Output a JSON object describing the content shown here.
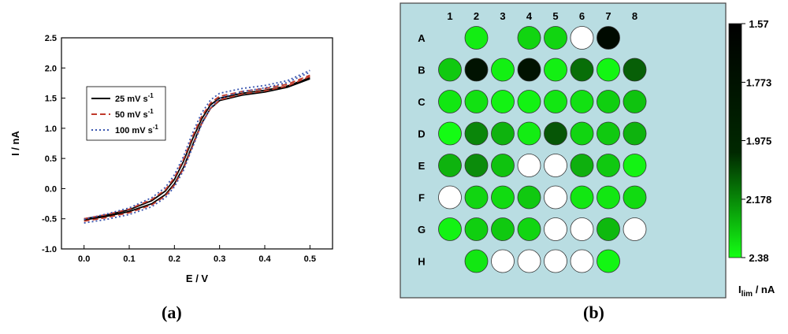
{
  "panel_a_caption": "(a)",
  "panel_b_caption": "(b)",
  "chart_data": [
    {
      "type": "line",
      "xlabel": "E / V",
      "ylabel": "I / nA",
      "xlim": [
        -0.05,
        0.55
      ],
      "ylim": [
        -1.0,
        2.5
      ],
      "xticks": [
        "0.0",
        "0.1",
        "0.2",
        "0.3",
        "0.4",
        "0.5"
      ],
      "xtick_values": [
        0.0,
        0.1,
        0.2,
        0.3,
        0.4,
        0.5
      ],
      "yticks": [
        "-1.0",
        "-0.5",
        "0.0",
        "0.5",
        "1.0",
        "1.5",
        "2.0",
        "2.5"
      ],
      "ytick_values": [
        -1.0,
        -0.5,
        0.0,
        0.5,
        1.0,
        1.5,
        2.0,
        2.5
      ],
      "legend_position": "upper-left",
      "x": [
        0.0,
        0.05,
        0.1,
        0.15,
        0.18,
        0.2,
        0.22,
        0.24,
        0.26,
        0.28,
        0.3,
        0.35,
        0.4,
        0.45,
        0.5
      ],
      "series": [
        {
          "name": "25 mV s",
          "superscript": "-1",
          "style": "solid",
          "color": "#000000",
          "forward": [
            -0.52,
            -0.46,
            -0.38,
            -0.25,
            -0.1,
            0.08,
            0.35,
            0.72,
            1.08,
            1.33,
            1.46,
            1.55,
            1.6,
            1.68,
            1.82
          ],
          "reverse": [
            -0.5,
            -0.44,
            -0.35,
            -0.2,
            -0.04,
            0.15,
            0.45,
            0.82,
            1.15,
            1.39,
            1.5,
            1.58,
            1.63,
            1.7,
            1.84
          ]
        },
        {
          "name": "50 mV s",
          "superscript": "-1",
          "style": "dashed",
          "color": "#c0392b",
          "forward": [
            -0.54,
            -0.48,
            -0.4,
            -0.27,
            -0.12,
            0.06,
            0.33,
            0.7,
            1.07,
            1.33,
            1.47,
            1.57,
            1.62,
            1.7,
            1.86
          ],
          "reverse": [
            -0.5,
            -0.43,
            -0.34,
            -0.18,
            -0.02,
            0.18,
            0.48,
            0.86,
            1.19,
            1.42,
            1.53,
            1.61,
            1.66,
            1.73,
            1.88
          ]
        },
        {
          "name": "100 mV s",
          "superscript": "-1",
          "style": "dotted",
          "color": "#3a56b0",
          "forward": [
            -0.57,
            -0.51,
            -0.43,
            -0.3,
            -0.15,
            0.03,
            0.3,
            0.68,
            1.06,
            1.34,
            1.5,
            1.61,
            1.67,
            1.76,
            1.93
          ],
          "reverse": [
            -0.51,
            -0.42,
            -0.32,
            -0.15,
            0.02,
            0.23,
            0.53,
            0.92,
            1.25,
            1.47,
            1.58,
            1.66,
            1.71,
            1.79,
            1.96
          ]
        }
      ]
    },
    {
      "type": "heatmap",
      "columns": [
        "1",
        "2",
        "3",
        "4",
        "5",
        "6",
        "7",
        "8"
      ],
      "rows": [
        "A",
        "B",
        "C",
        "D",
        "E",
        "F",
        "G",
        "H"
      ],
      "empty_value": "white",
      "colorbar_ticks": [
        "1.57",
        "1.773",
        "1.975",
        "2.178",
        "2.38"
      ],
      "colorbar_values": [
        1.57,
        1.773,
        1.975,
        2.178,
        2.38
      ],
      "colorbar_label": "I",
      "colorbar_label_sub": "lim",
      "colorbar_label_suffix": " / nA",
      "range": [
        1.57,
        2.38
      ],
      "background_color": "#b9dde2",
      "cells": [
        [
          null,
          2.32,
          null,
          2.24,
          2.24,
          "white",
          1.57,
          null
        ],
        [
          2.2,
          1.6,
          2.33,
          1.6,
          2.33,
          1.9,
          2.35,
          1.85
        ],
        [
          2.3,
          2.28,
          2.34,
          2.34,
          2.3,
          2.28,
          2.22,
          2.18
        ],
        [
          2.37,
          1.98,
          2.13,
          2.32,
          1.82,
          2.24,
          2.2,
          2.13
        ],
        [
          2.13,
          2.0,
          2.18,
          "white",
          "white",
          2.12,
          2.2,
          2.34
        ],
        [
          "white",
          2.24,
          2.26,
          2.2,
          "white",
          2.3,
          2.3,
          2.26
        ],
        [
          2.34,
          2.22,
          2.2,
          2.24,
          "white",
          "white",
          2.15,
          "white"
        ],
        [
          null,
          2.3,
          "white",
          "white",
          "white",
          "white",
          2.35,
          null
        ]
      ]
    }
  ]
}
